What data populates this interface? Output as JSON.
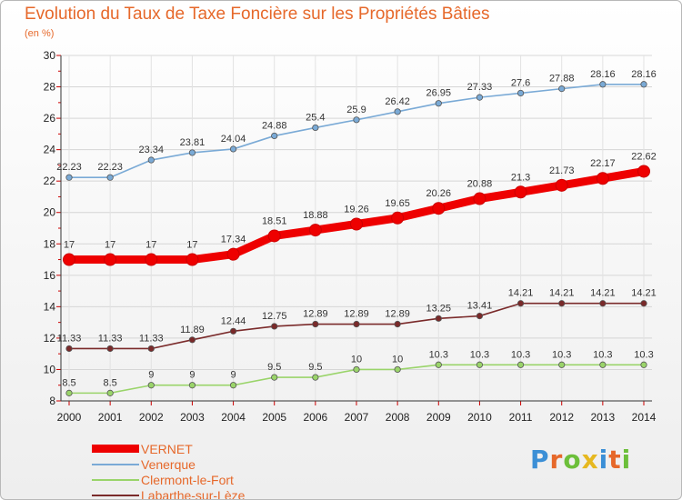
{
  "header": {
    "title": "Evolution du Taux de Taxe Foncière sur les Propriétés Bâties",
    "unit": "(en %)"
  },
  "logo": {
    "text": "Proxiti",
    "colors": [
      "#3b8fd6",
      "#e6682a",
      "#6cbf3a",
      "#e6b820",
      "#3b8fd6",
      "#e6682a",
      "#6cbf3a"
    ]
  },
  "chart_data": {
    "type": "line",
    "x": [
      "2000",
      "2001",
      "2002",
      "2003",
      "2004",
      "2005",
      "2006",
      "2007",
      "2008",
      "2009",
      "2010",
      "2011",
      "2012",
      "2013",
      "2014"
    ],
    "ylim": [
      8,
      30
    ],
    "yticks": [
      8,
      10,
      12,
      14,
      16,
      18,
      20,
      22,
      24,
      26,
      28,
      30
    ],
    "grid": true,
    "legend_position": "bottom-left",
    "series": [
      {
        "name": "VERNET",
        "color": "#ee0000",
        "values": [
          17,
          17,
          17,
          17,
          17.34,
          18.51,
          18.88,
          19.26,
          19.65,
          20.26,
          20.88,
          21.3,
          21.73,
          22.17,
          22.62
        ],
        "labels": [
          "17",
          "17",
          "17",
          "17",
          "17.34",
          "18.51",
          "18.88",
          "19.26",
          "19.65",
          "20.26",
          "20.88",
          "21.3",
          "21.73",
          "22.17",
          "22.62"
        ]
      },
      {
        "name": "Venerque",
        "color": "#7aaad6",
        "values": [
          22.23,
          22.23,
          23.34,
          23.81,
          24.04,
          24.88,
          25.4,
          25.9,
          26.42,
          26.95,
          27.33,
          27.6,
          27.88,
          28.16,
          28.16
        ],
        "labels": [
          "22.23",
          "22.23",
          "23.34",
          "23.81",
          "24.04",
          "24.88",
          "25.4",
          "25.9",
          "26.42",
          "26.95",
          "27.33",
          "27.6",
          "27.88",
          "28.16",
          "28.16"
        ]
      },
      {
        "name": "Clermont-le-Fort",
        "color": "#9ad46a",
        "values": [
          8.5,
          8.5,
          9,
          9,
          9,
          9.5,
          9.5,
          10,
          10,
          10.3,
          10.3,
          10.3,
          10.3,
          10.3,
          10.3
        ],
        "labels": [
          "8.5",
          "8.5",
          "9",
          "9",
          "9",
          "9.5",
          "9.5",
          "10",
          "10",
          "10.3",
          "10.3",
          "10.3",
          "10.3",
          "10.3",
          "10.3"
        ]
      },
      {
        "name": "Labarthe-sur-Lèze",
        "color": "#7a2a2a",
        "values": [
          11.33,
          11.33,
          11.33,
          11.89,
          12.44,
          12.75,
          12.89,
          12.89,
          12.89,
          13.25,
          13.41,
          14.21,
          14.21,
          14.21,
          14.21
        ],
        "labels": [
          "11.33",
          "11.33",
          "11.33",
          "11.89",
          "12.44",
          "12.75",
          "12.89",
          "12.89",
          "12.89",
          "13.25",
          "13.41",
          "14.21",
          "14.21",
          "14.21",
          "14.21"
        ]
      }
    ]
  }
}
